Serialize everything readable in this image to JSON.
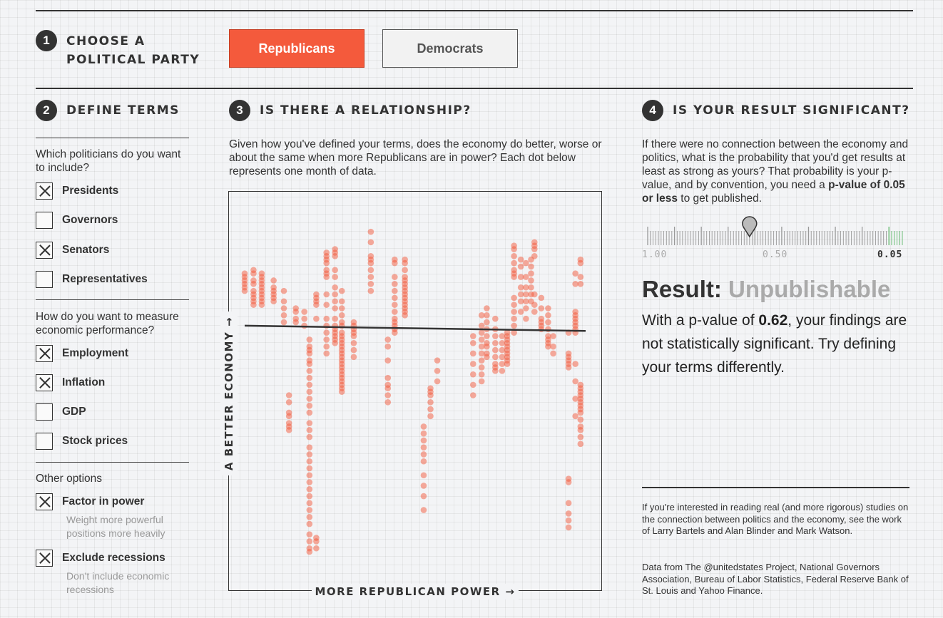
{
  "step1": {
    "num": "1",
    "title_line1": "CHOOSE A",
    "title_line2": "POLITICAL PARTY"
  },
  "party_buttons": {
    "republicans": "Republicans",
    "democrats": "Democrats",
    "active_color": "#f45a3c"
  },
  "step2": {
    "num": "2",
    "title": "DEFINE TERMS"
  },
  "politicians": {
    "question": "Which politicians do you want to include?",
    "options": [
      {
        "label": "Presidents",
        "checked": true
      },
      {
        "label": "Governors",
        "checked": false
      },
      {
        "label": "Senators",
        "checked": true
      },
      {
        "label": "Representatives",
        "checked": false
      }
    ]
  },
  "economy": {
    "question": "How do you want to measure economic performance?",
    "options": [
      {
        "label": "Employment",
        "checked": true
      },
      {
        "label": "Inflation",
        "checked": true
      },
      {
        "label": "GDP",
        "checked": false
      },
      {
        "label": "Stock prices",
        "checked": false
      }
    ]
  },
  "other": {
    "question": "Other options",
    "options": [
      {
        "label": "Factor in power",
        "checked": true,
        "sub": "Weight more powerful positions more heavily"
      },
      {
        "label": "Exclude recessions",
        "checked": true,
        "sub": "Don't include economic recessions"
      }
    ]
  },
  "step3": {
    "num": "3",
    "title": "IS THERE A RELATIONSHIP?",
    "description": "Given how you've defined your terms, does the economy do better, worse or about the same when more Republicans are in power? Each dot below represents one month of data."
  },
  "chart_data": {
    "type": "scatter",
    "xlabel": "MORE REPUBLICAN POWER →",
    "ylabel": "A BETTER ECONOMY →",
    "x_range": [
      0,
      100
    ],
    "y_range": [
      0,
      100
    ],
    "dot_color": "#f45a3c",
    "trend": {
      "x": [
        0,
        100
      ],
      "y": [
        66,
        64.5
      ]
    },
    "columns": [
      {
        "x": 0,
        "y": [
          81,
          80,
          79,
          78,
          77,
          76
        ]
      },
      {
        "x": 2.6,
        "y": [
          82,
          81,
          79,
          78,
          76,
          75,
          74,
          73,
          72
        ]
      },
      {
        "x": 5,
        "y": [
          81,
          80,
          79,
          78,
          77,
          76,
          75,
          74,
          73,
          72
        ]
      },
      {
        "x": 8.5,
        "y": [
          79,
          77,
          76,
          75,
          74,
          73
        ]
      },
      {
        "x": 11.5,
        "y": [
          76,
          73,
          71,
          69,
          67
        ]
      },
      {
        "x": 13,
        "y": [
          46,
          44,
          41,
          40,
          38,
          37,
          36
        ]
      },
      {
        "x": 15,
        "y": [
          71,
          70,
          68,
          67
        ]
      },
      {
        "x": 17.5,
        "y": [
          70,
          68,
          66
        ]
      },
      {
        "x": 19,
        "y": [
          62,
          60,
          59,
          58,
          56,
          55,
          53,
          51,
          49,
          47,
          45,
          43,
          41,
          38,
          36,
          34,
          31,
          29,
          27,
          25,
          23,
          21,
          19,
          17,
          15,
          13,
          11,
          9,
          6,
          4,
          2,
          1
        ]
      },
      {
        "x": 21,
        "y": [
          75,
          74,
          73,
          72,
          68,
          5,
          4,
          2
        ]
      },
      {
        "x": 24,
        "y": [
          87,
          86,
          85,
          84,
          82,
          81,
          80,
          75,
          72,
          68,
          66,
          64,
          62,
          60,
          58
        ]
      },
      {
        "x": 26.5,
        "y": [
          88,
          87,
          86,
          82,
          80,
          77,
          75,
          73,
          71,
          68,
          66,
          65,
          64,
          63,
          62,
          61
        ]
      },
      {
        "x": 28.5,
        "y": [
          76,
          73,
          71,
          69,
          67,
          66,
          64,
          63,
          62,
          61,
          60,
          59,
          58,
          57,
          56,
          55,
          54,
          53,
          52,
          51,
          50,
          49,
          48,
          47
        ]
      },
      {
        "x": 32,
        "y": [
          67,
          66,
          65,
          64,
          63,
          61,
          59,
          57
        ]
      },
      {
        "x": 37,
        "y": [
          93,
          90,
          86,
          85,
          84,
          82,
          80,
          78,
          76
        ]
      },
      {
        "x": 42,
        "y": [
          62,
          60,
          56,
          51,
          49,
          48,
          46,
          44
        ]
      },
      {
        "x": 44,
        "y": [
          85,
          84,
          80,
          78,
          76,
          74,
          72,
          70,
          68,
          67,
          66,
          65,
          64
        ]
      },
      {
        "x": 47,
        "y": [
          85,
          84,
          82,
          80,
          79,
          78,
          77,
          76,
          75,
          74,
          73,
          72,
          71,
          70,
          69
        ]
      },
      {
        "x": 52.5,
        "y": [
          37,
          35,
          33,
          31,
          29,
          27,
          23,
          20,
          17,
          13
        ]
      },
      {
        "x": 54.5,
        "y": [
          48,
          47,
          46,
          44,
          42,
          40
        ]
      },
      {
        "x": 56.5,
        "y": [
          56,
          53,
          50
        ]
      },
      {
        "x": 67,
        "y": [
          63,
          61,
          58,
          55,
          52,
          49,
          46
        ]
      },
      {
        "x": 69.5,
        "y": [
          69,
          66,
          64,
          62,
          60,
          58,
          56,
          54,
          52,
          50
        ]
      },
      {
        "x": 71,
        "y": [
          71,
          69,
          67,
          65,
          63,
          61,
          60,
          58,
          57
        ]
      },
      {
        "x": 73.5,
        "y": [
          68,
          65,
          63,
          61,
          59,
          57,
          55,
          54,
          53
        ]
      },
      {
        "x": 75.5,
        "y": [
          63,
          61,
          59,
          57,
          55,
          53
        ]
      },
      {
        "x": 77,
        "y": [
          64,
          63,
          62,
          61,
          60,
          59,
          58,
          57,
          56,
          55
        ]
      },
      {
        "x": 79,
        "y": [
          89,
          88,
          86,
          84,
          82,
          81,
          80,
          74,
          72,
          70,
          68,
          66,
          64
        ]
      },
      {
        "x": 81,
        "y": [
          85,
          83,
          80,
          77,
          75,
          73,
          70
        ]
      },
      {
        "x": 82.5,
        "y": [
          84,
          80,
          77,
          75,
          73,
          71,
          68
        ]
      },
      {
        "x": 84,
        "y": [
          85,
          83,
          81,
          79,
          77,
          75,
          73
        ]
      },
      {
        "x": 85,
        "y": [
          90,
          89,
          88,
          86,
          75,
          72,
          70
        ]
      },
      {
        "x": 87,
        "y": [
          74,
          71,
          68,
          67,
          66,
          65
        ]
      },
      {
        "x": 89,
        "y": [
          71,
          69,
          67,
          65,
          63,
          62,
          61,
          60
        ]
      },
      {
        "x": 90.5,
        "y": [
          63,
          60,
          58
        ]
      },
      {
        "x": 95,
        "y": [
          64,
          58,
          57,
          56,
          55,
          54,
          22,
          21,
          15,
          12,
          10,
          8
        ]
      },
      {
        "x": 97,
        "y": [
          81,
          78,
          70,
          69,
          68,
          67,
          66,
          65,
          64,
          55,
          50,
          45,
          40
        ]
      },
      {
        "x": 98.5,
        "y": [
          85,
          84,
          80,
          78,
          49,
          48,
          47,
          46,
          45,
          44,
          43,
          42,
          41,
          39,
          37,
          36,
          34,
          32
        ]
      }
    ]
  },
  "step4": {
    "num": "4",
    "title": "IS YOUR RESULT SIGNIFICANT?",
    "description_html": "If there were no connection between the economy and politics, what is the probability that you'd get results at least as strong as yours? That probability is your p-value, and by convention, you need a <b>p-value of 0.05 or less</b> to get published."
  },
  "slider": {
    "label_max": "1.00",
    "label_mid": "0.50",
    "label_min": "0.05",
    "p_value": 0.62,
    "highlight_color": "#5fb86a"
  },
  "result": {
    "prefix": "Result:",
    "status": "Unpublishable",
    "body_before": "With a p-value of ",
    "p_value_text": "0.62",
    "body_after": ", your findings are not statistically significant. Try defining your terms differently."
  },
  "footer": {
    "note": "If you're interested in reading real (and more rigorous) studies on the connection between politics and the economy, see the work of Larry Bartels and Alan Blinder and Mark Watson.",
    "source": "Data from The @unitedstates Project, National Governors Association, Bureau of Labor Statistics, Federal Reserve Bank of St. Louis and Yahoo Finance."
  }
}
